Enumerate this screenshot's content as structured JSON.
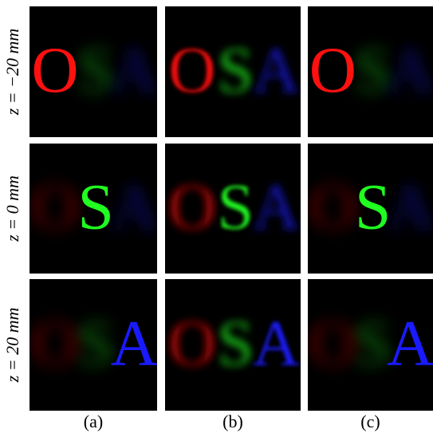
{
  "rows": [
    {
      "label": "z = −20 mm"
    },
    {
      "label": "z = 0 mm"
    },
    {
      "label": "z = 20 mm"
    }
  ],
  "columns": [
    "(a)",
    "(b)",
    "(c)"
  ],
  "letters": [
    "O",
    "S",
    "A"
  ],
  "colors": [
    "#ff1010",
    "#20ff20",
    "#1a1aff"
  ]
}
